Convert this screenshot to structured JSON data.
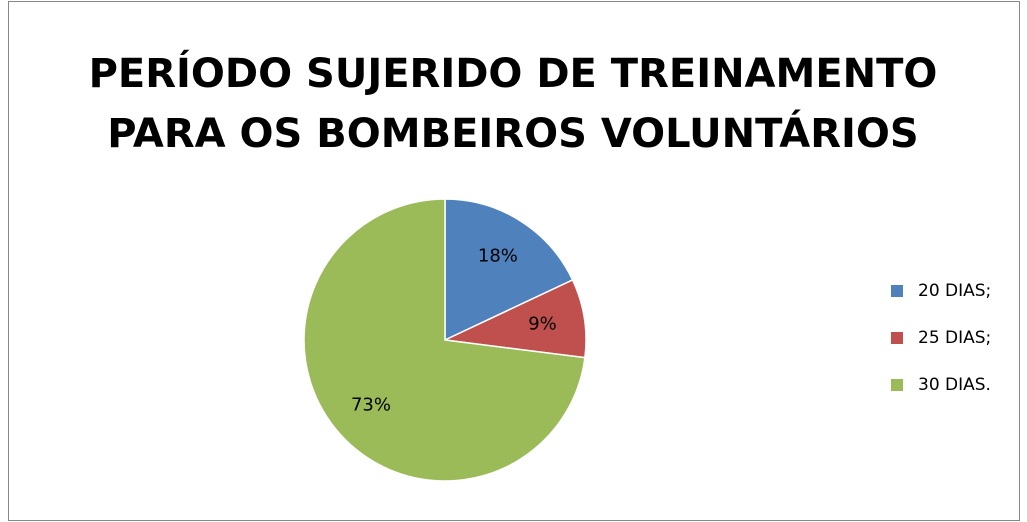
{
  "chart_data": {
    "type": "pie",
    "title": [
      "PERÍODO SUJERIDO DE TREINAMENTO",
      "PARA OS BOMBEIROS VOLUNTÁRIOS"
    ],
    "categories": [
      "20 DIAS;",
      "25 DIAS;",
      "30 DIAS."
    ],
    "values": [
      18,
      9,
      73
    ],
    "value_labels": [
      "18%",
      "9%",
      "73%"
    ],
    "colors": [
      "#4f81bd",
      "#c0504d",
      "#9bbb59"
    ],
    "legend": "right"
  }
}
